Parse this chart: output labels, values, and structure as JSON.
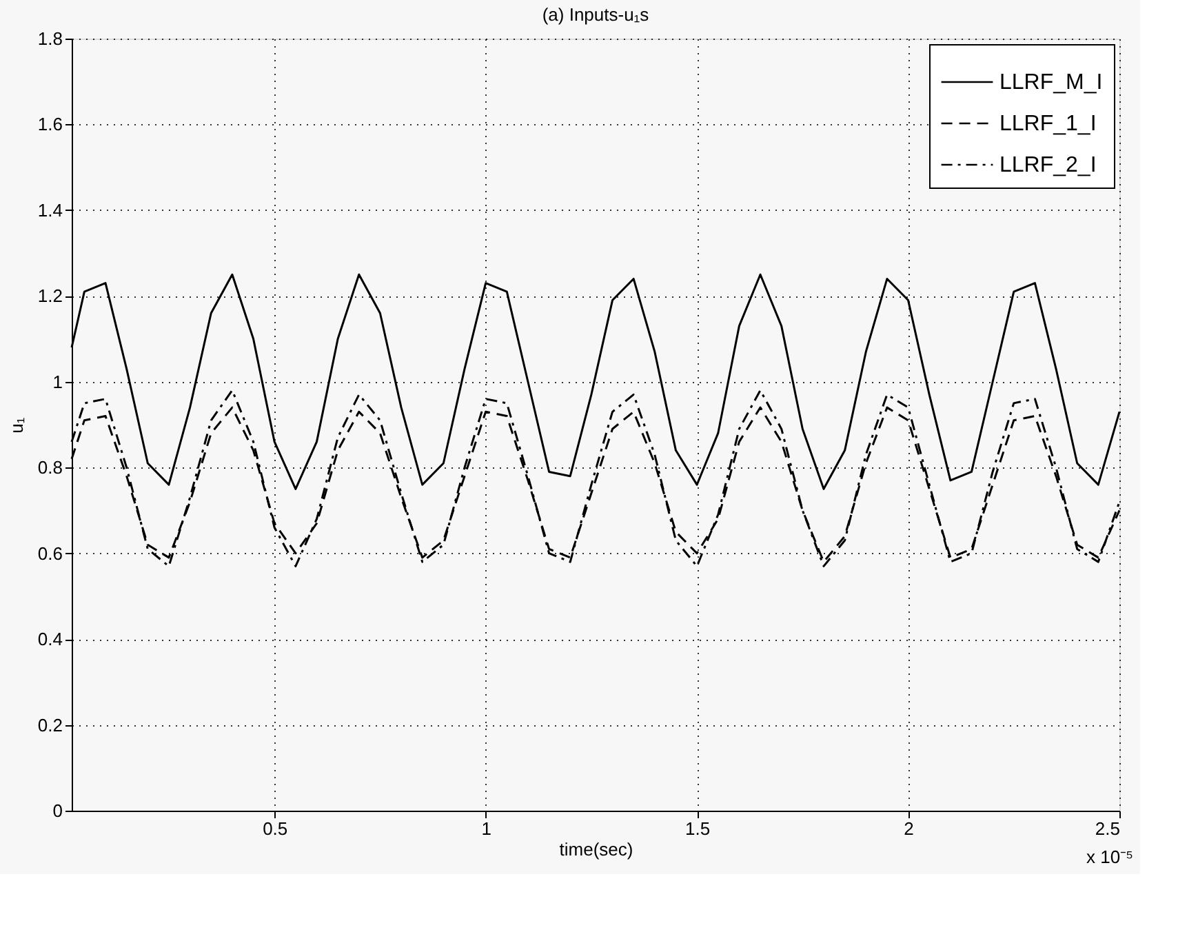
{
  "chart_data": {
    "type": "line",
    "title": "(a) Inputs-u₁s",
    "xlabel": "time(sec)",
    "ylabel": "u₁",
    "annotations": [
      "x 10⁻⁵"
    ],
    "x": [
      0.02,
      0.05,
      0.1,
      0.15,
      0.2,
      0.25,
      0.3,
      0.35,
      0.4,
      0.45,
      0.5,
      0.55,
      0.6,
      0.65,
      0.7,
      0.75,
      0.8,
      0.85,
      0.9,
      0.95,
      1.0,
      1.05,
      1.1,
      1.15,
      1.2,
      1.25,
      1.3,
      1.35,
      1.4,
      1.45,
      1.5,
      1.55,
      1.6,
      1.65,
      1.7,
      1.75,
      1.8,
      1.85,
      1.9,
      1.95,
      2.0,
      2.05,
      2.1,
      2.15,
      2.2,
      2.25,
      2.3,
      2.35,
      2.4,
      2.45,
      2.5
    ],
    "series": [
      {
        "name": "LLRF_M_I",
        "color": "#000000",
        "line_style": "solid",
        "values": [
          1.08,
          1.21,
          1.23,
          1.03,
          0.81,
          0.76,
          0.94,
          1.16,
          1.25,
          1.1,
          0.86,
          0.75,
          0.86,
          1.1,
          1.25,
          1.16,
          0.94,
          0.76,
          0.81,
          1.03,
          1.23,
          1.21,
          1.0,
          0.79,
          0.78,
          0.97,
          1.19,
          1.24,
          1.07,
          0.84,
          0.76,
          0.88,
          1.13,
          1.25,
          1.13,
          0.89,
          0.75,
          0.84,
          1.07,
          1.24,
          1.19,
          0.97,
          0.77,
          0.79,
          1.0,
          1.21,
          1.23,
          1.03,
          0.81,
          0.76,
          0.93
        ]
      },
      {
        "name": "LLRF_1_I",
        "color": "#000000",
        "line_style": "dashed",
        "values": [
          0.82,
          0.91,
          0.92,
          0.78,
          0.62,
          0.59,
          0.72,
          0.88,
          0.94,
          0.84,
          0.67,
          0.6,
          0.67,
          0.84,
          0.93,
          0.88,
          0.73,
          0.59,
          0.63,
          0.78,
          0.93,
          0.92,
          0.77,
          0.61,
          0.59,
          0.74,
          0.89,
          0.93,
          0.81,
          0.65,
          0.6,
          0.68,
          0.86,
          0.94,
          0.86,
          0.7,
          0.58,
          0.64,
          0.81,
          0.94,
          0.91,
          0.75,
          0.59,
          0.61,
          0.76,
          0.91,
          0.92,
          0.78,
          0.62,
          0.59,
          0.7
        ]
      },
      {
        "name": "LLRF_2_I",
        "color": "#000000",
        "line_style": "dashdot",
        "values": [
          0.86,
          0.95,
          0.96,
          0.8,
          0.61,
          0.57,
          0.73,
          0.91,
          0.98,
          0.86,
          0.66,
          0.57,
          0.68,
          0.87,
          0.97,
          0.91,
          0.74,
          0.58,
          0.62,
          0.8,
          0.96,
          0.95,
          0.78,
          0.6,
          0.58,
          0.76,
          0.93,
          0.97,
          0.83,
          0.63,
          0.57,
          0.69,
          0.89,
          0.98,
          0.89,
          0.7,
          0.57,
          0.63,
          0.83,
          0.97,
          0.94,
          0.76,
          0.58,
          0.6,
          0.79,
          0.95,
          0.96,
          0.8,
          0.61,
          0.58,
          0.72
        ]
      }
    ],
    "xlim": [
      0.02,
      2.5
    ],
    "xticks": [
      0.5,
      1,
      1.5,
      2,
      2.5
    ],
    "ylim": [
      0,
      1.8
    ],
    "yticks": [
      0,
      0.2,
      0.4,
      0.6,
      0.8,
      1,
      1.2,
      1.4,
      1.6,
      1.8
    ],
    "grid": true,
    "legend": "top right",
    "marker": "none"
  }
}
